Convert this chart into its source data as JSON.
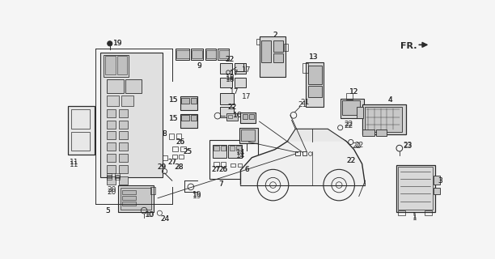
{
  "background_color": "#f5f5f5",
  "line_color": "#2a2a2a",
  "fig_width": 6.12,
  "fig_height": 3.2,
  "dpi": 100
}
